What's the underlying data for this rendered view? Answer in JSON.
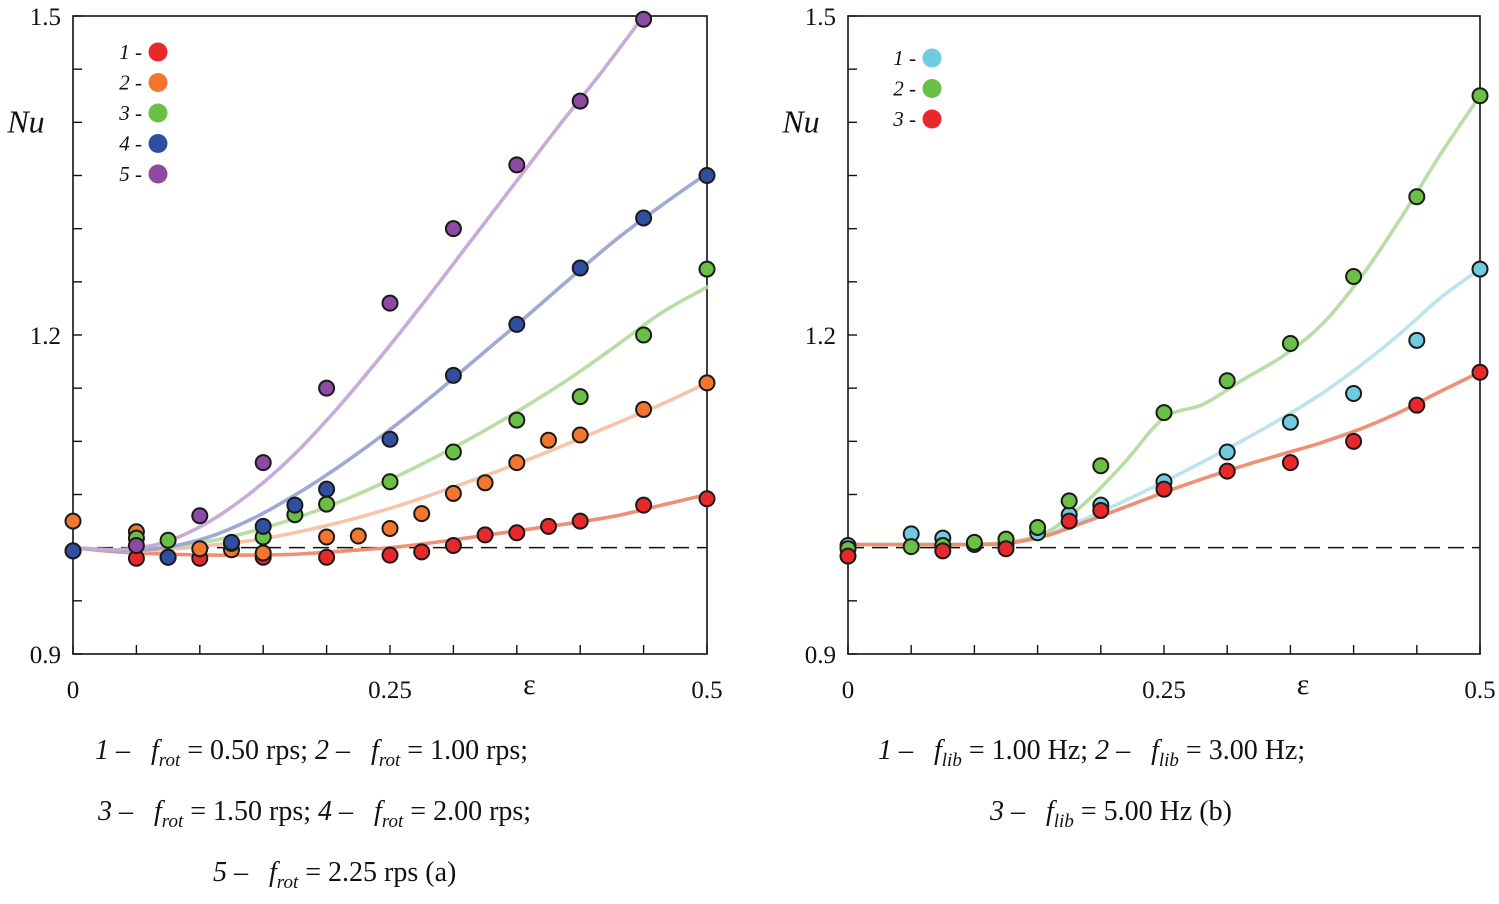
{
  "chart_data": [
    {
      "type": "scatter",
      "panel": "a",
      "xlabel": "ε",
      "ylabel": "Nu",
      "xlim": [
        0,
        0.5
      ],
      "ylim": [
        0.9,
        1.5
      ],
      "xticks": [
        "0",
        "0.25",
        "0.5"
      ],
      "yticks": [
        "0.9",
        "1.2",
        "1.5"
      ],
      "reference_line": 1.0,
      "legend_position": "top-left",
      "series": [
        {
          "name": "1",
          "color": "#e8282b",
          "curve_color": "#ee8a6e",
          "x": [
            0,
            0.05,
            0.075,
            0.1,
            0.15,
            0.2,
            0.25,
            0.275,
            0.3,
            0.325,
            0.35,
            0.375,
            0.4,
            0.45,
            0.5
          ],
          "y": [
            0.997,
            0.99,
            0.991,
            0.99,
            0.991,
            0.991,
            0.993,
            0.996,
            1.002,
            1.012,
            1.014,
            1.02,
            1.025,
            1.04,
            1.046
          ],
          "curve_y": [
            1.0,
            0.996,
            0.994,
            0.993,
            0.993,
            0.994,
            0.997,
            1.0,
            1.005,
            1.011,
            1.017,
            1.023,
            1.03,
            1.04,
            1.05
          ]
        },
        {
          "name": "2",
          "color": "#f2762e",
          "curve_color": "#f7c1a6",
          "x": [
            0,
            0.05,
            0.1,
            0.125,
            0.15,
            0.2,
            0.225,
            0.25,
            0.275,
            0.3,
            0.325,
            0.35,
            0.375,
            0.4,
            0.45,
            0.5
          ],
          "y": [
            1.025,
            1.015,
            0.999,
            0.998,
            0.995,
            1.01,
            1.011,
            1.018,
            1.032,
            1.051,
            1.061,
            1.08,
            1.101,
            1.106,
            1.13,
            1.155
          ],
          "curve_y": [
            1.0,
            0.997,
            0.998,
            1.002,
            1.007,
            1.015,
            1.025,
            1.037,
            1.051,
            1.066,
            1.082,
            1.099,
            1.117,
            1.135,
            1.155
          ]
        },
        {
          "name": "3",
          "color": "#6abf45",
          "curve_color": "#b5dc9f",
          "x": [
            0.05,
            0.075,
            0.125,
            0.15,
            0.175,
            0.2,
            0.25,
            0.3,
            0.35,
            0.4,
            0.45,
            0.5
          ],
          "y": [
            1.009,
            1.007,
            1.004,
            1.01,
            1.031,
            1.041,
            1.062,
            1.09,
            1.12,
            1.142,
            1.2,
            1.262
          ],
          "curve_y": [
            1.0,
            0.998,
            1.0,
            1.006,
            1.016,
            1.029,
            1.045,
            1.064,
            1.085,
            1.108,
            1.133,
            1.16,
            1.19,
            1.221,
            1.245
          ]
        },
        {
          "name": "4",
          "color": "#2f4fa2",
          "curve_color": "#9aa4d3",
          "x": [
            0,
            0.075,
            0.125,
            0.15,
            0.175,
            0.2,
            0.25,
            0.3,
            0.35,
            0.4,
            0.45,
            0.5
          ],
          "y": [
            0.997,
            0.991,
            1.005,
            1.02,
            1.04,
            1.055,
            1.102,
            1.162,
            1.21,
            1.263,
            1.31,
            1.35
          ],
          "curve_y": [
            1.0,
            0.997,
            1.0,
            1.01,
            1.028,
            1.052,
            1.08,
            1.111,
            1.145,
            1.181,
            1.217,
            1.254,
            1.29,
            1.322,
            1.352
          ]
        },
        {
          "name": "5",
          "color": "#8d4aa3",
          "curve_color": "#c4a8d6",
          "x": [
            0.05,
            0.1,
            0.15,
            0.2,
            0.25,
            0.3,
            0.35,
            0.4,
            0.45
          ],
          "y": [
            1.002,
            1.03,
            1.08,
            1.15,
            1.23,
            1.3,
            1.36,
            1.42,
            1.497
          ],
          "curve_y": [
            1.0,
            0.998,
            1.004,
            1.022,
            1.05,
            1.086,
            1.13,
            1.179,
            1.231,
            1.285,
            1.339,
            1.393,
            1.445,
            1.5
          ]
        }
      ]
    },
    {
      "type": "scatter",
      "panel": "b",
      "xlabel": "ε",
      "ylabel": "Nu",
      "xlim": [
        0,
        0.5
      ],
      "ylim": [
        0.9,
        1.5
      ],
      "xticks": [
        "0",
        "0.25",
        "0.5"
      ],
      "yticks": [
        "0.9",
        "1.2",
        "1.5"
      ],
      "reference_line": 1.0,
      "legend_position": "top-left",
      "series": [
        {
          "name": "1",
          "color": "#6fcbe0",
          "curve_color": "#b9e1ec",
          "x": [
            0,
            0.05,
            0.075,
            0.1,
            0.125,
            0.15,
            0.175,
            0.2,
            0.25,
            0.3,
            0.35,
            0.4,
            0.45,
            0.5
          ],
          "y": [
            1.002,
            1.013,
            1.009,
            1.003,
            1.003,
            1.014,
            1.031,
            1.04,
            1.062,
            1.09,
            1.118,
            1.145,
            1.195,
            1.262
          ],
          "curve_y": [
            1.003,
            1.003,
            1.003,
            1.003,
            1.004,
            1.012,
            1.027,
            1.044,
            1.062,
            1.081,
            1.101,
            1.122,
            1.145,
            1.172,
            1.202,
            1.235,
            1.262
          ]
        },
        {
          "name": "2",
          "color": "#6abf45",
          "curve_color": "#b5dc9f",
          "x": [
            0,
            0.05,
            0.075,
            0.1,
            0.125,
            0.15,
            0.175,
            0.2,
            0.25,
            0.3,
            0.35,
            0.4,
            0.45,
            0.5
          ],
          "y": [
            0.999,
            1.001,
            1.002,
            1.005,
            1.008,
            1.019,
            1.044,
            1.077,
            1.127,
            1.157,
            1.192,
            1.255,
            1.33,
            1.425
          ],
          "curve_y": [
            1.003,
            1.003,
            1.003,
            1.003,
            1.005,
            1.014,
            1.042,
            1.08,
            1.122,
            1.135,
            1.158,
            1.18,
            1.21,
            1.255,
            1.31,
            1.37,
            1.425
          ]
        },
        {
          "name": "3",
          "color": "#e8282b",
          "curve_color": "#ee8a6e",
          "x": [
            0,
            0.075,
            0.125,
            0.175,
            0.2,
            0.25,
            0.3,
            0.35,
            0.4,
            0.45,
            0.5
          ],
          "y": [
            0.992,
            0.997,
            0.999,
            1.025,
            1.035,
            1.055,
            1.072,
            1.08,
            1.1,
            1.134,
            1.165
          ],
          "curve_y": [
            1.003,
            1.003,
            1.003,
            1.003,
            1.004,
            1.011,
            1.024,
            1.038,
            1.052,
            1.065,
            1.077,
            1.088,
            1.099,
            1.112,
            1.128,
            1.147,
            1.165
          ]
        }
      ]
    }
  ],
  "captions": {
    "a": {
      "line1": {
        "n1": "1 –",
        "f1": "f",
        "s1": "rot",
        "v1": "= 0.50  rps;",
        "n2": "2 –",
        "f2": "f",
        "s2": "rot",
        "v2": "= 1.00  rps;"
      },
      "line2": {
        "n1": "3 –",
        "f1": "f",
        "s1": "rot",
        "v1": "= 1.50  rps;",
        "n2": "4 –",
        "f2": "f",
        "s2": "rot",
        "v2": "= 2.00  rps;"
      },
      "line3": {
        "n1": "5 –",
        "f1": "f",
        "s1": "rot",
        "v1": "= 2.25  rps (a)"
      }
    },
    "b": {
      "line1": {
        "n1": "1 –",
        "f1": "f",
        "s1": "lib",
        "v1": "= 1.00  Hz;",
        "n2": "2 –",
        "f2": "f",
        "s2": "lib",
        "v2": "= 3.00  Hz;"
      },
      "line2": {
        "n1": "3 –",
        "f1": "f",
        "s1": "lib",
        "v1": "= 5.00  Hz (b)"
      }
    }
  }
}
